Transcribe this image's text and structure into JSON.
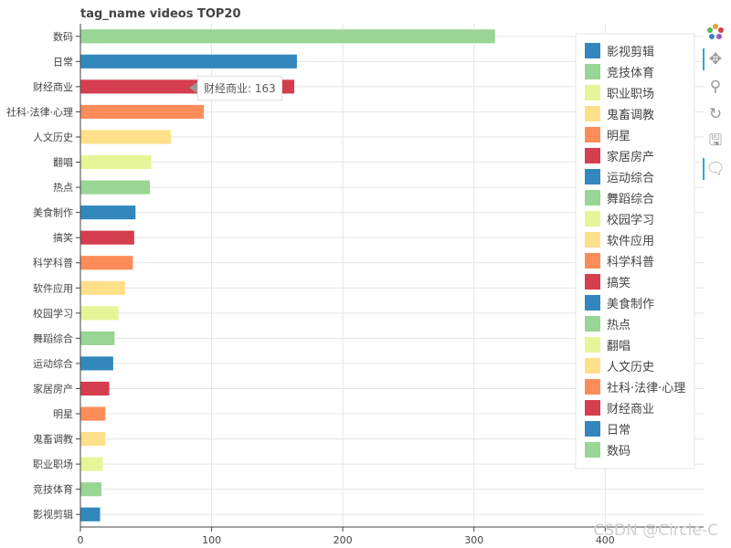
{
  "chart_data": {
    "type": "bar",
    "orientation": "horizontal",
    "title": "tag_name videos TOP20",
    "categories": [
      "数码",
      "日常",
      "财经商业",
      "社科·法律·心理",
      "人文历史",
      "翻唱",
      "热点",
      "美食制作",
      "搞笑",
      "科学科普",
      "软件应用",
      "校园学习",
      "舞蹈综合",
      "运动综合",
      "家居房产",
      "明星",
      "鬼畜调教",
      "职业职场",
      "竞技体育",
      "影视剪辑"
    ],
    "values": [
      316,
      165,
      163,
      94,
      69,
      54,
      53,
      42,
      41,
      40,
      34,
      29,
      26,
      25,
      22,
      19,
      19,
      17,
      16,
      15
    ],
    "colors": [
      "#99d594",
      "#3288bd",
      "#d53e4f",
      "#fc8d59",
      "#fee08b",
      "#e6f598",
      "#99d594",
      "#3288bd",
      "#d53e4f",
      "#fc8d59",
      "#fee08b",
      "#e6f598",
      "#99d594",
      "#3288bd",
      "#d53e4f",
      "#fc8d59",
      "#fee08b",
      "#e6f598",
      "#99d594",
      "#3288bd"
    ],
    "xlim": [
      0,
      475
    ],
    "xticks": [
      0,
      100,
      200,
      300,
      400
    ],
    "grid": true,
    "legend_position": "top-right",
    "legend": [
      "影视剪辑",
      "竞技体育",
      "职业职场",
      "鬼畜调教",
      "明星",
      "家居房产",
      "运动综合",
      "舞蹈综合",
      "校园学习",
      "软件应用",
      "科学科普",
      "搞笑",
      "美食制作",
      "热点",
      "翻唱",
      "人文历史",
      "社科·法律·心理",
      "财经商业",
      "日常",
      "数码"
    ],
    "legend_colors": [
      "#3288bd",
      "#99d594",
      "#e6f598",
      "#fee08b",
      "#fc8d59",
      "#d53e4f",
      "#3288bd",
      "#99d594",
      "#e6f598",
      "#fee08b",
      "#fc8d59",
      "#d53e4f",
      "#3288bd",
      "#99d594",
      "#e6f598",
      "#fee08b",
      "#fc8d59",
      "#d53e4f",
      "#3288bd",
      "#99d594"
    ]
  },
  "tooltip": {
    "text": "财经商业: 163"
  },
  "toolbar": {
    "icons": [
      "bokeh-logo-icon",
      "pan-icon",
      "wheel-zoom-icon",
      "reset-icon",
      "save-icon",
      "hover-icon"
    ]
  },
  "watermark": "CSDN @Circle-C"
}
